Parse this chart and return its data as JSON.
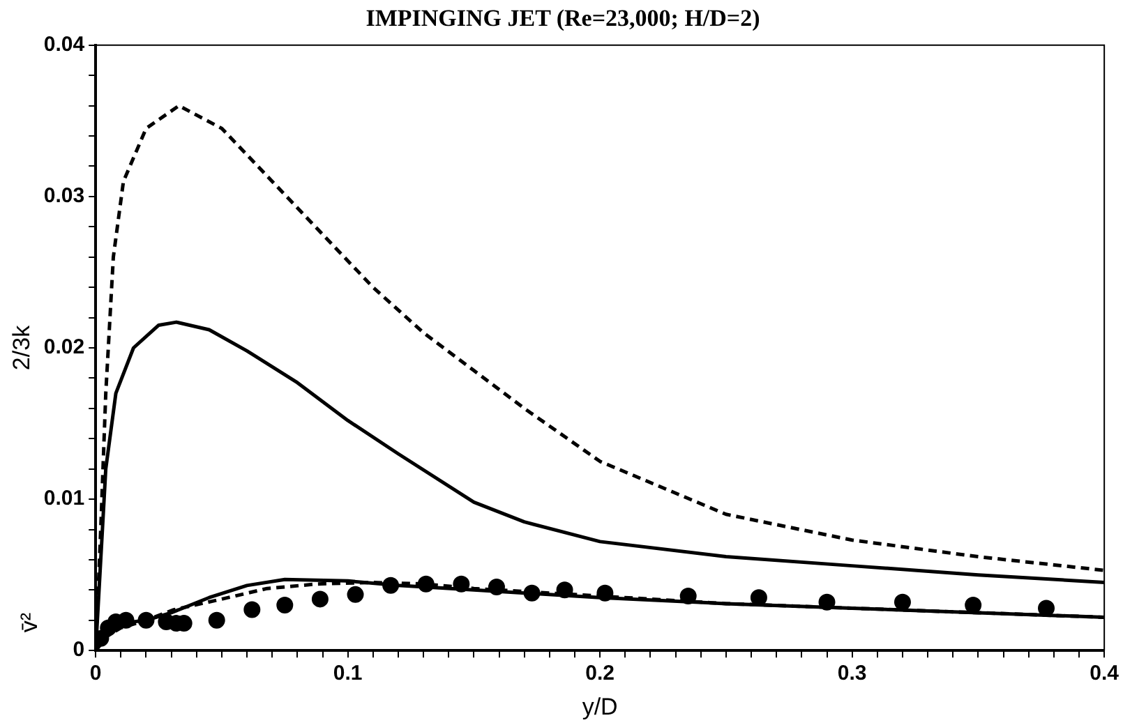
{
  "chart_data": {
    "type": "line",
    "title": "IMPINGING JET (Re=23,000; H/D=2)",
    "xlabel": "y/D",
    "ylabel": "2/3k",
    "annotations": [
      "v̄²"
    ],
    "xlim": [
      0,
      0.4
    ],
    "ylim": [
      0,
      0.04
    ],
    "xticks": [
      0,
      {
        "value": 0.01,
        "label": null
      },
      {
        "value": 0.02,
        "label": null
      },
      {
        "value": 0.03,
        "label": null
      },
      {
        "value": 0.04,
        "label": null
      },
      {
        "value": 0.05,
        "label": null
      },
      {
        "value": 0.06,
        "label": null
      },
      {
        "value": 0.07,
        "label": null
      },
      {
        "value": 0.08,
        "label": null
      },
      {
        "value": 0.09,
        "label": null
      },
      0.1,
      {
        "value": 0.11,
        "label": null
      },
      {
        "value": 0.12,
        "label": null
      },
      {
        "value": 0.13,
        "label": null
      },
      {
        "value": 0.14,
        "label": null
      },
      {
        "value": 0.15,
        "label": null
      },
      {
        "value": 0.16,
        "label": null
      },
      {
        "value": 0.17,
        "label": null
      },
      {
        "value": 0.18,
        "label": null
      },
      {
        "value": 0.19,
        "label": null
      },
      0.2,
      {
        "value": 0.21,
        "label": null
      },
      {
        "value": 0.22,
        "label": null
      },
      {
        "value": 0.23,
        "label": null
      },
      {
        "value": 0.24,
        "label": null
      },
      {
        "value": 0.25,
        "label": null
      },
      {
        "value": 0.26,
        "label": null
      },
      {
        "value": 0.27,
        "label": null
      },
      {
        "value": 0.28,
        "label": null
      },
      {
        "value": 0.29,
        "label": null
      },
      0.3,
      {
        "value": 0.31,
        "label": null
      },
      {
        "value": 0.32,
        "label": null
      },
      {
        "value": 0.33,
        "label": null
      },
      {
        "value": 0.34,
        "label": null
      },
      {
        "value": 0.35,
        "label": null
      },
      {
        "value": 0.36,
        "label": null
      },
      {
        "value": 0.37,
        "label": null
      },
      {
        "value": 0.38,
        "label": null
      },
      {
        "value": 0.39,
        "label": null
      },
      0.4
    ],
    "yticks": [
      0,
      {
        "value": 0.002,
        "label": null
      },
      {
        "value": 0.004,
        "label": null
      },
      {
        "value": 0.006,
        "label": null
      },
      {
        "value": 0.008,
        "label": null
      },
      0.01,
      {
        "value": 0.012,
        "label": null
      },
      {
        "value": 0.014,
        "label": null
      },
      {
        "value": 0.016,
        "label": null
      },
      {
        "value": 0.018,
        "label": null
      },
      0.02,
      {
        "value": 0.022,
        "label": null
      },
      {
        "value": 0.024,
        "label": null
      },
      {
        "value": 0.026,
        "label": null
      },
      {
        "value": 0.028,
        "label": null
      },
      0.03,
      {
        "value": 0.032,
        "label": null
      },
      {
        "value": 0.034,
        "label": null
      },
      {
        "value": 0.036,
        "label": null
      },
      {
        "value": 0.038,
        "label": null
      },
      0.04
    ],
    "grid": false,
    "legend": false,
    "series": [
      {
        "color": "#000000",
        "line_style": "dashed",
        "marker": "none",
        "x": [
          0,
          0.002,
          0.004,
          0.007,
          0.011,
          0.02,
          0.033,
          0.05,
          0.07,
          0.09,
          0.11,
          0.13,
          0.15,
          0.17,
          0.2,
          0.25,
          0.3,
          0.35,
          0.4
        ],
        "values": [
          0,
          0.008,
          0.017,
          0.026,
          0.031,
          0.0345,
          0.036,
          0.0345,
          0.031,
          0.0275,
          0.024,
          0.021,
          0.0185,
          0.016,
          0.0125,
          0.009,
          0.0073,
          0.0062,
          0.0053
        ]
      },
      {
        "color": "#000000",
        "line_style": "solid",
        "marker": "none",
        "x": [
          0,
          0.002,
          0.004,
          0.008,
          0.015,
          0.025,
          0.032,
          0.045,
          0.06,
          0.08,
          0.1,
          0.12,
          0.15,
          0.17,
          0.2,
          0.25,
          0.3,
          0.35,
          0.4
        ],
        "values": [
          0,
          0.006,
          0.012,
          0.017,
          0.02,
          0.0215,
          0.0217,
          0.0212,
          0.0198,
          0.0177,
          0.0152,
          0.013,
          0.0098,
          0.0085,
          0.0072,
          0.0062,
          0.0056,
          0.005,
          0.0045
        ]
      },
      {
        "color": "#000000",
        "line_style": "solid",
        "marker": "none",
        "x": [
          0,
          0.005,
          0.01,
          0.02,
          0.03,
          0.045,
          0.06,
          0.075,
          0.1,
          0.12,
          0.15,
          0.2,
          0.25,
          0.3,
          0.35,
          0.4
        ],
        "values": [
          0,
          0.0012,
          0.0018,
          0.002,
          0.0025,
          0.0035,
          0.0043,
          0.0047,
          0.0046,
          0.0043,
          0.004,
          0.0035,
          0.0031,
          0.0028,
          0.0025,
          0.0022
        ]
      },
      {
        "color": "#000000",
        "line_style": "dashed",
        "marker": "none",
        "x": [
          0,
          0.005,
          0.01,
          0.02,
          0.031,
          0.05,
          0.068,
          0.088,
          0.11,
          0.13,
          0.15,
          0.2,
          0.25,
          0.3,
          0.35,
          0.4
        ],
        "values": [
          0,
          0.001,
          0.0015,
          0.002,
          0.0027,
          0.0034,
          0.0041,
          0.0044,
          0.0045,
          0.0044,
          0.0041,
          0.0036,
          0.0031,
          0.0028,
          0.0025,
          0.0022
        ]
      },
      {
        "type": "scatter",
        "color": "#000000",
        "marker": "circle",
        "x": [
          0.002,
          0.005,
          0.008,
          0.012,
          0.016,
          0.02,
          0.024,
          0.028,
          0.032,
          0.035,
          0.048,
          0.062,
          0.075,
          0.089,
          0.103,
          0.117,
          0.131,
          0.145,
          0.159,
          0.173,
          0.186,
          0.202,
          0.235,
          0.263,
          0.29,
          0.32,
          0.348,
          0.377
        ],
        "values": [
          0.0008,
          0.0015,
          0.0019,
          0.002,
          null,
          0.002,
          null,
          0.0019,
          0.0018,
          0.0018,
          0.002,
          0.0027,
          0.003,
          0.0034,
          0.0037,
          0.0043,
          0.0044,
          0.0044,
          0.0042,
          0.0038,
          0.004,
          0.0038,
          0.0036,
          0.0035,
          0.0032,
          0.0032,
          0.003,
          0.0028
        ]
      }
    ]
  }
}
